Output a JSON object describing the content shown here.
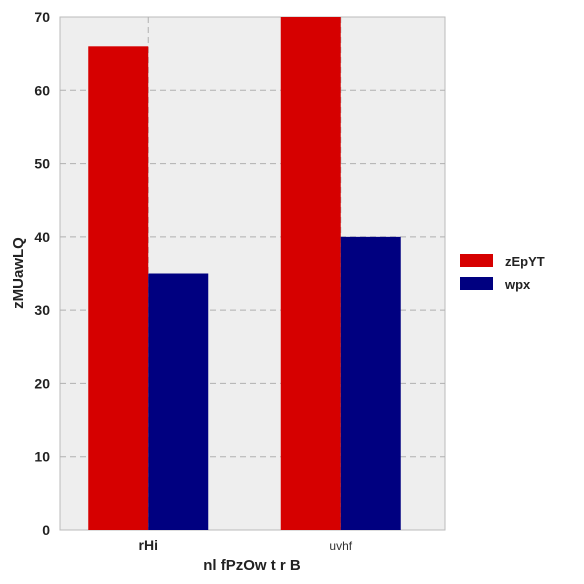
{
  "chart_data": {
    "type": "bar",
    "categories": [
      "rHi",
      "uvhf"
    ],
    "series": [
      {
        "name": "zEpYT",
        "values": [
          66,
          70
        ],
        "color": "#d60000"
      },
      {
        "name": "wpx",
        "values": [
          35,
          40
        ],
        "color": "#000080"
      }
    ],
    "xlabel": "nl fPzOw t r B",
    "ylabel": "zMUawLQ",
    "ylim": [
      0,
      70
    ],
    "yticks": [
      0,
      10,
      20,
      30,
      40,
      50,
      60,
      70
    ],
    "grid": true,
    "legend": "right",
    "background": "#eeeeee",
    "grid_color": "#b0b0b0"
  }
}
